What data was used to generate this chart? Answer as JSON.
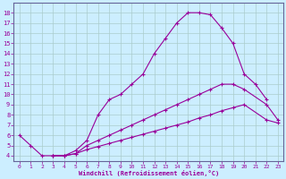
{
  "xlabel": "Windchill (Refroidissement éolien,°C)",
  "bg_color": "#cceeff",
  "line_color": "#990099",
  "grid_color": "#aacccc",
  "xlim": [
    -0.5,
    23.5
  ],
  "ylim": [
    3.5,
    19.0
  ],
  "xticks": [
    0,
    1,
    2,
    3,
    4,
    5,
    6,
    7,
    8,
    9,
    10,
    11,
    12,
    13,
    14,
    15,
    16,
    17,
    18,
    19,
    20,
    21,
    22,
    23
  ],
  "yticks": [
    4,
    5,
    6,
    7,
    8,
    9,
    10,
    11,
    12,
    13,
    14,
    15,
    16,
    17,
    18
  ],
  "curve1_x": [
    0,
    1,
    2,
    3,
    4,
    5,
    6,
    7,
    8,
    9,
    10,
    11,
    12,
    13,
    14,
    15,
    16,
    17,
    18,
    19,
    20,
    21,
    22
  ],
  "curve1_y": [
    6.0,
    5.0,
    4.0,
    4.0,
    4.0,
    4.5,
    5.5,
    8.0,
    9.5,
    10.0,
    11.0,
    12.0,
    14.0,
    15.5,
    17.0,
    18.0,
    18.0,
    17.8,
    16.5,
    15.0,
    12.0,
    11.0,
    9.5
  ],
  "curve2_x": [
    3,
    4,
    5,
    6,
    7,
    8,
    9,
    10,
    11,
    12,
    13,
    14,
    15,
    16,
    17,
    18,
    19,
    20,
    22,
    23
  ],
  "curve2_y": [
    4.0,
    4.0,
    4.2,
    5.0,
    5.5,
    6.0,
    6.5,
    7.0,
    7.5,
    8.0,
    8.5,
    9.0,
    9.5,
    10.0,
    10.5,
    11.0,
    11.0,
    10.5,
    9.0,
    7.5
  ],
  "curve3_x": [
    3,
    4,
    5,
    6,
    7,
    8,
    9,
    10,
    11,
    12,
    13,
    14,
    15,
    16,
    17,
    18,
    19,
    20,
    22,
    23
  ],
  "curve3_y": [
    4.0,
    4.0,
    4.2,
    4.6,
    4.9,
    5.2,
    5.5,
    5.8,
    6.1,
    6.4,
    6.7,
    7.0,
    7.3,
    7.7,
    8.0,
    8.4,
    8.7,
    9.0,
    7.5,
    7.2
  ]
}
